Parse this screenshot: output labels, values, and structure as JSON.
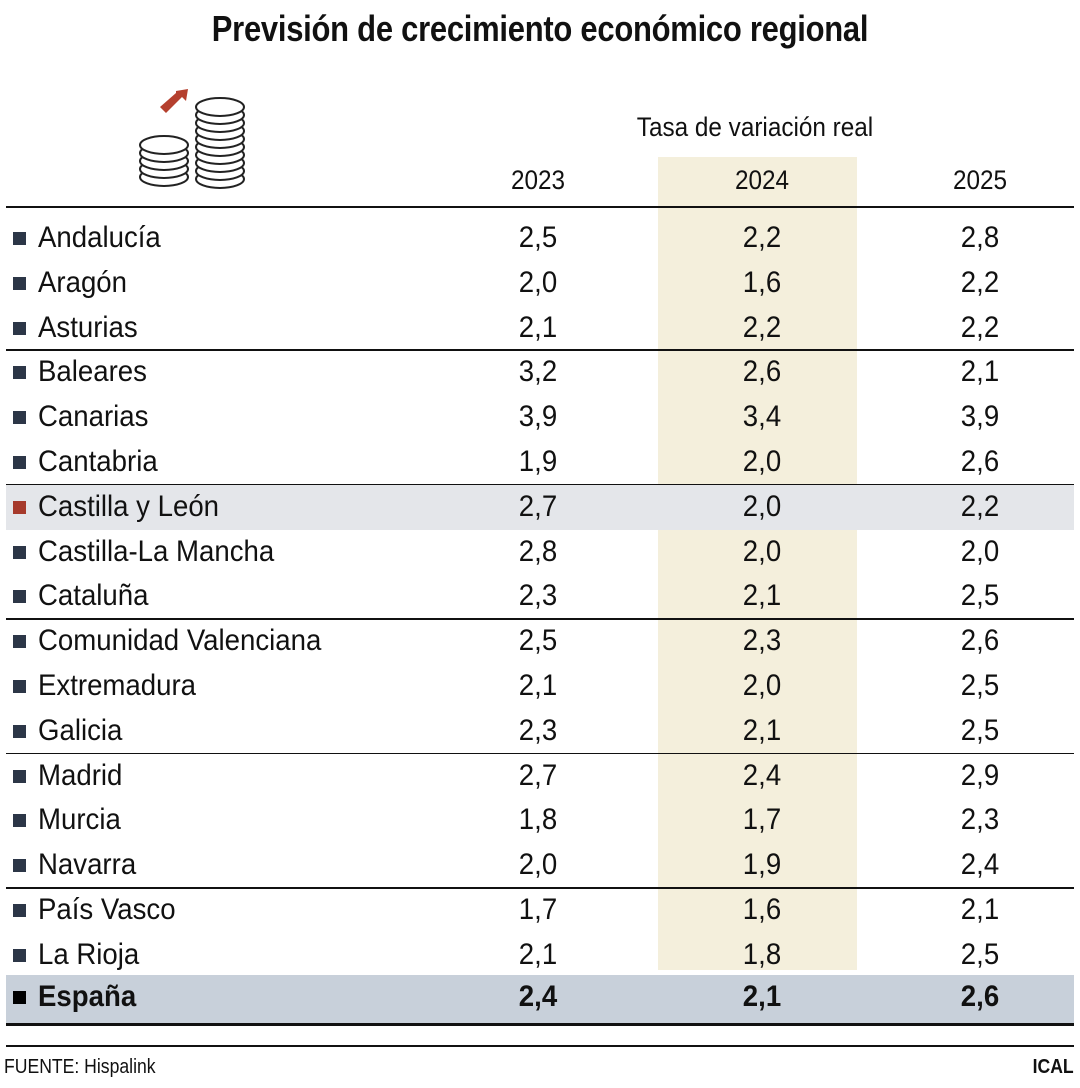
{
  "chart_data": {
    "type": "table",
    "title": "Previsión de crecimiento económico regional",
    "subtitle": "Tasa de variación real",
    "columns": [
      "2023",
      "2024",
      "2025"
    ],
    "rows": [
      {
        "name": "Andalucía",
        "values": [
          "2,5",
          "2,2",
          "2,8"
        ]
      },
      {
        "name": "Aragón",
        "values": [
          "2,0",
          "1,6",
          "2,2"
        ]
      },
      {
        "name": "Asturias",
        "values": [
          "2,1",
          "2,2",
          "2,2"
        ]
      },
      {
        "name": "Baleares",
        "values": [
          "3,2",
          "2,6",
          "2,1"
        ]
      },
      {
        "name": "Canarias",
        "values": [
          "3,9",
          "3,4",
          "3,9"
        ]
      },
      {
        "name": "Cantabria",
        "values": [
          "1,9",
          "2,0",
          "2,6"
        ]
      },
      {
        "name": "Castilla y León",
        "values": [
          "2,7",
          "2,0",
          "2,2"
        ],
        "highlight": true
      },
      {
        "name": "Castilla-La Mancha",
        "values": [
          "2,8",
          "2,0",
          "2,0"
        ]
      },
      {
        "name": "Cataluña",
        "values": [
          "2,3",
          "2,1",
          "2,5"
        ]
      },
      {
        "name": "Comunidad Valenciana",
        "values": [
          "2,5",
          "2,3",
          "2,6"
        ]
      },
      {
        "name": "Extremadura",
        "values": [
          "2,1",
          "2,0",
          "2,5"
        ]
      },
      {
        "name": "Galicia",
        "values": [
          "2,3",
          "2,1",
          "2,5"
        ]
      },
      {
        "name": "Madrid",
        "values": [
          "2,7",
          "2,4",
          "2,9"
        ]
      },
      {
        "name": "Murcia",
        "values": [
          "1,8",
          "1,7",
          "2,3"
        ]
      },
      {
        "name": "Navarra",
        "values": [
          "2,0",
          "1,9",
          "2,4"
        ]
      },
      {
        "name": "País Vasco",
        "values": [
          "1,7",
          "1,6",
          "2,1"
        ]
      },
      {
        "name": "La Rioja",
        "values": [
          "2,1",
          "1,8",
          "2,5"
        ]
      },
      {
        "name": "España",
        "values": [
          "2,4",
          "2,1",
          "2,6"
        ],
        "total": true
      }
    ],
    "highlighted_column": "2024",
    "colors": {
      "highlight_column": "#f4efdc",
      "highlight_row": "#e4e6ea",
      "total_row": "#c8d0da",
      "bullet": "#2c3647",
      "highlight_bullet": "#a63a2c",
      "icon_arrow": "#b5402e"
    }
  },
  "footer": {
    "source": "FUENTE: Hispalink",
    "credit": "ICAL"
  },
  "icon": "coin-stacks-growth-icon"
}
